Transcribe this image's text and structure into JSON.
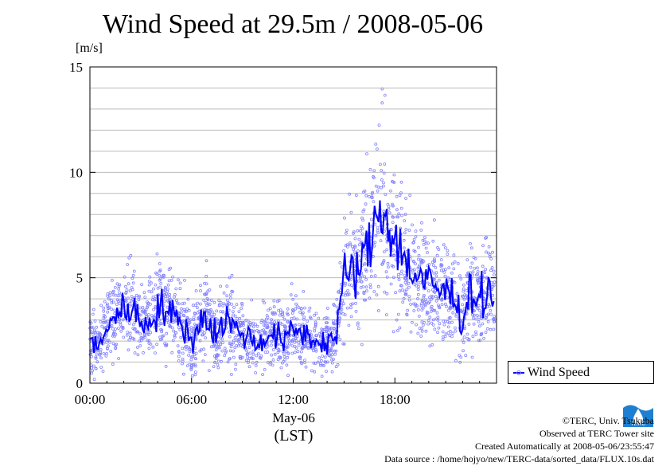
{
  "title": "Wind Speed at 29.5m / 2008-05-06",
  "y_unit": "[m/s]",
  "x_date": "May-06",
  "x_zone": "(LST)",
  "legend_label": "Wind Speed",
  "logo_text": "TERC",
  "credits": [
    "©TERC, Univ. Tsukuba",
    "Observed at TERC Tower site",
    "Created Automatically at 2008-05-06/23:55:47",
    "Data source : /home/hojyo/new/TERC-data/sorted_data/FLUX.10s.dat"
  ],
  "colors": {
    "line": "#0000ff",
    "points": "#8080ff",
    "grid": "#bbbbbb"
  },
  "chart_data": {
    "type": "line",
    "title": "Wind Speed at 29.5m / 2008-05-06",
    "ylabel": "[m/s]",
    "xlabel": "May-06 (LST)",
    "ylim": [
      0,
      15
    ],
    "xlim": [
      0,
      24
    ],
    "x_ticks": [
      "00:00",
      "06:00",
      "12:00",
      "18:00"
    ],
    "y_ticks": [
      "0",
      "5",
      "10",
      "15"
    ],
    "grid": "horizontal, every 1 m/s",
    "legend_position": "outside right, bottom",
    "series": [
      {
        "name": "Wind Speed",
        "x": [
          0,
          0.5,
          1,
          1.5,
          2,
          2.5,
          3,
          3.5,
          4,
          4.5,
          5,
          5.5,
          6,
          6.5,
          7,
          7.5,
          8,
          8.5,
          9,
          9.5,
          10,
          10.5,
          11,
          11.5,
          12,
          12.5,
          13,
          13.5,
          14,
          14.5,
          15,
          15.5,
          16,
          16.5,
          17,
          17.5,
          18,
          18.5,
          19,
          19.5,
          20,
          20.5,
          21,
          21.5,
          22,
          22.5,
          23,
          23.5
        ],
        "values": [
          2.2,
          1.5,
          2.8,
          3.2,
          3.4,
          3.8,
          2.7,
          3.0,
          3.5,
          3.6,
          3.0,
          2.9,
          1.8,
          3.1,
          3.0,
          2.2,
          3.2,
          2.6,
          2.4,
          2.1,
          1.8,
          2.4,
          2.2,
          2.0,
          2.5,
          2.4,
          2.2,
          1.9,
          2.0,
          2.2,
          5.0,
          5.2,
          5.6,
          6.5,
          8.2,
          8.0,
          6.8,
          6.0,
          5.3,
          4.9,
          4.7,
          4.5,
          4.3,
          4.1,
          3.0,
          4.5,
          4.0,
          4.2
        ]
      }
    ]
  }
}
